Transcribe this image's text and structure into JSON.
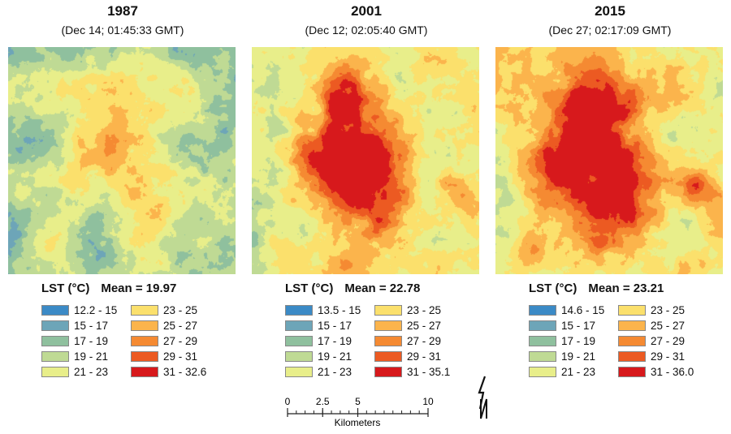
{
  "colors": {
    "classes": [
      "#3b8ac6",
      "#6da5b8",
      "#8fc09e",
      "#bfda94",
      "#e8ee8a",
      "#fbe06c",
      "#fbb44c",
      "#f58a32",
      "#ec5a22",
      "#d7191c"
    ]
  },
  "panels": [
    {
      "year": "1987",
      "date": "(Dec 14; 01:45:33 GMT)",
      "legend_label": "LST (°C)",
      "mean_label": "Mean = 19.97",
      "classes": [
        "12.2 - 15",
        "15 - 17",
        "17 - 19",
        "19 - 21",
        "21 - 23",
        "23 - 25",
        "25 - 27",
        "27 - 29",
        "29 - 31",
        "31 - 32.6"
      ]
    },
    {
      "year": "2001",
      "date": "(Dec 12; 02:05:40 GMT)",
      "legend_label": "LST (°C)",
      "mean_label": "Mean = 22.78",
      "classes": [
        "13.5 - 15",
        "15 - 17",
        "17 - 19",
        "19 - 21",
        "21 - 23",
        "23 - 25",
        "25 - 27",
        "27 - 29",
        "29 - 31",
        "31 - 35.1"
      ]
    },
    {
      "year": "2015",
      "date": "(Dec 27; 02:17:09 GMT)",
      "legend_label": "LST (°C)",
      "mean_label": "Mean = 23.21",
      "classes": [
        "14.6 - 15",
        "15 - 17",
        "17 - 19",
        "19 - 21",
        "21 - 23",
        "23 - 25",
        "25 - 27",
        "27 - 29",
        "29 - 31",
        "31 - 36.0"
      ]
    }
  ],
  "scale_bar": {
    "tick_labels": [
      "0",
      "2.5",
      "5",
      "10"
    ],
    "tick_values_km": [
      0,
      2.5,
      5,
      10
    ],
    "units": "Kilometers"
  }
}
